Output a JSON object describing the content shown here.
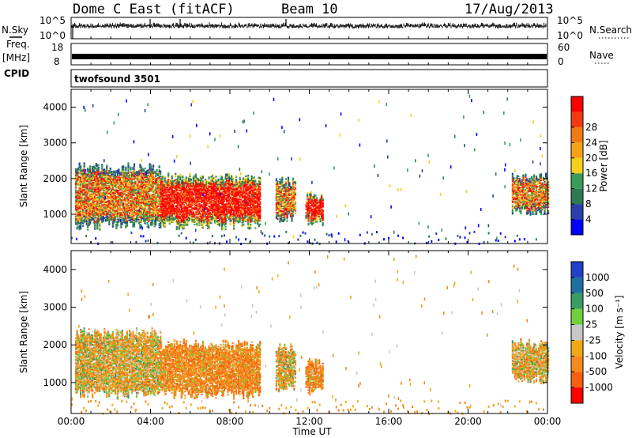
{
  "header": {
    "title": "Dome C East (fitACF)",
    "beam": "Beam 10",
    "date": "17/Aug/2013"
  },
  "left_labels": {
    "nsky": "N.Sky",
    "freq": "Freq.",
    "mhz": "[MHz]",
    "cpid": "CPID"
  },
  "right_labels": {
    "nsearch": "N.Search",
    "nave": "Nave"
  },
  "cpid_value": "twofsound 3501",
  "colors": {
    "power": [
      "#0000ff",
      "#2a3fa8",
      "#2f7a52",
      "#3a9a58",
      "#f5cf1e",
      "#f5a21b",
      "#f27a16",
      "#f23b10",
      "#ff0000"
    ],
    "velocity_pos": [
      "#2240c8",
      "#1f6fa0",
      "#3a9c60",
      "#6fd03c"
    ],
    "velocity_neg": [
      "#c8c8c8",
      "#f0a818",
      "#f48a1e",
      "#f66010",
      "#ff0000"
    ]
  },
  "chart_data": [
    {
      "type": "line",
      "name": "N.Sky",
      "ylim_labels": [
        "10^0",
        "10^5"
      ],
      "right_ylim_labels": [
        "10^0",
        "10^5"
      ],
      "xlim": [
        "00:00",
        "00:00"
      ]
    },
    {
      "type": "line",
      "name": "Freq.",
      "y_ticks": [
        "8",
        "18"
      ],
      "right_y_ticks": [
        "0",
        "60"
      ],
      "xlim": [
        "00:00",
        "00:00"
      ]
    },
    {
      "type": "heatmap",
      "name": "power",
      "ylabel": "Slant Range [km]",
      "y_ticks": [
        1000,
        2000,
        3000,
        4000
      ],
      "ylim": [
        180,
        4500
      ],
      "colorbar_label": "Power [dB]",
      "colorbar_ticks": [
        "4",
        "8",
        "12",
        "16",
        "20",
        "24",
        "28"
      ],
      "regions": [
        {
          "t_start": 0.2,
          "t_end": 4.5,
          "r_min": 700,
          "r_max": 2300,
          "level": "mixed"
        },
        {
          "t_start": 4.5,
          "t_end": 9.5,
          "r_min": 700,
          "r_max": 2000,
          "level": "strong"
        },
        {
          "t_start": 10.3,
          "t_end": 11.3,
          "r_min": 900,
          "r_max": 1900,
          "level": "mixed"
        },
        {
          "t_start": 11.8,
          "t_end": 12.7,
          "r_min": 800,
          "r_max": 1500,
          "level": "strong"
        },
        {
          "t_start": 22.2,
          "t_end": 24.0,
          "r_min": 1100,
          "r_max": 2000,
          "level": "mixed"
        }
      ]
    },
    {
      "type": "heatmap",
      "name": "velocity",
      "ylabel": "Slant Range [km]",
      "xlabel": "Time UT",
      "y_ticks": [
        1000,
        2000,
        3000,
        4000
      ],
      "ylim": [
        180,
        4500
      ],
      "x_ticks": [
        "00:00",
        "04:00",
        "08:00",
        "12:00",
        "16:00",
        "20:00",
        "00:00"
      ],
      "colorbar_label": "Velocity [m s⁻¹]",
      "colorbar_ticks": [
        "1000",
        "500",
        "100",
        "25",
        "-25",
        "-100",
        "-500",
        "-1000"
      ],
      "regions": [
        {
          "t_start": 0.2,
          "t_end": 4.5,
          "r_min": 700,
          "r_max": 2300,
          "level": "mixed"
        },
        {
          "t_start": 4.5,
          "t_end": 9.5,
          "r_min": 700,
          "r_max": 2000,
          "level": "negative"
        },
        {
          "t_start": 10.3,
          "t_end": 11.3,
          "r_min": 900,
          "r_max": 1900,
          "level": "mixed"
        },
        {
          "t_start": 11.8,
          "t_end": 12.7,
          "r_min": 800,
          "r_max": 1500,
          "level": "negative"
        },
        {
          "t_start": 22.2,
          "t_end": 24.0,
          "r_min": 1100,
          "r_max": 2000,
          "level": "mixed"
        }
      ]
    }
  ]
}
